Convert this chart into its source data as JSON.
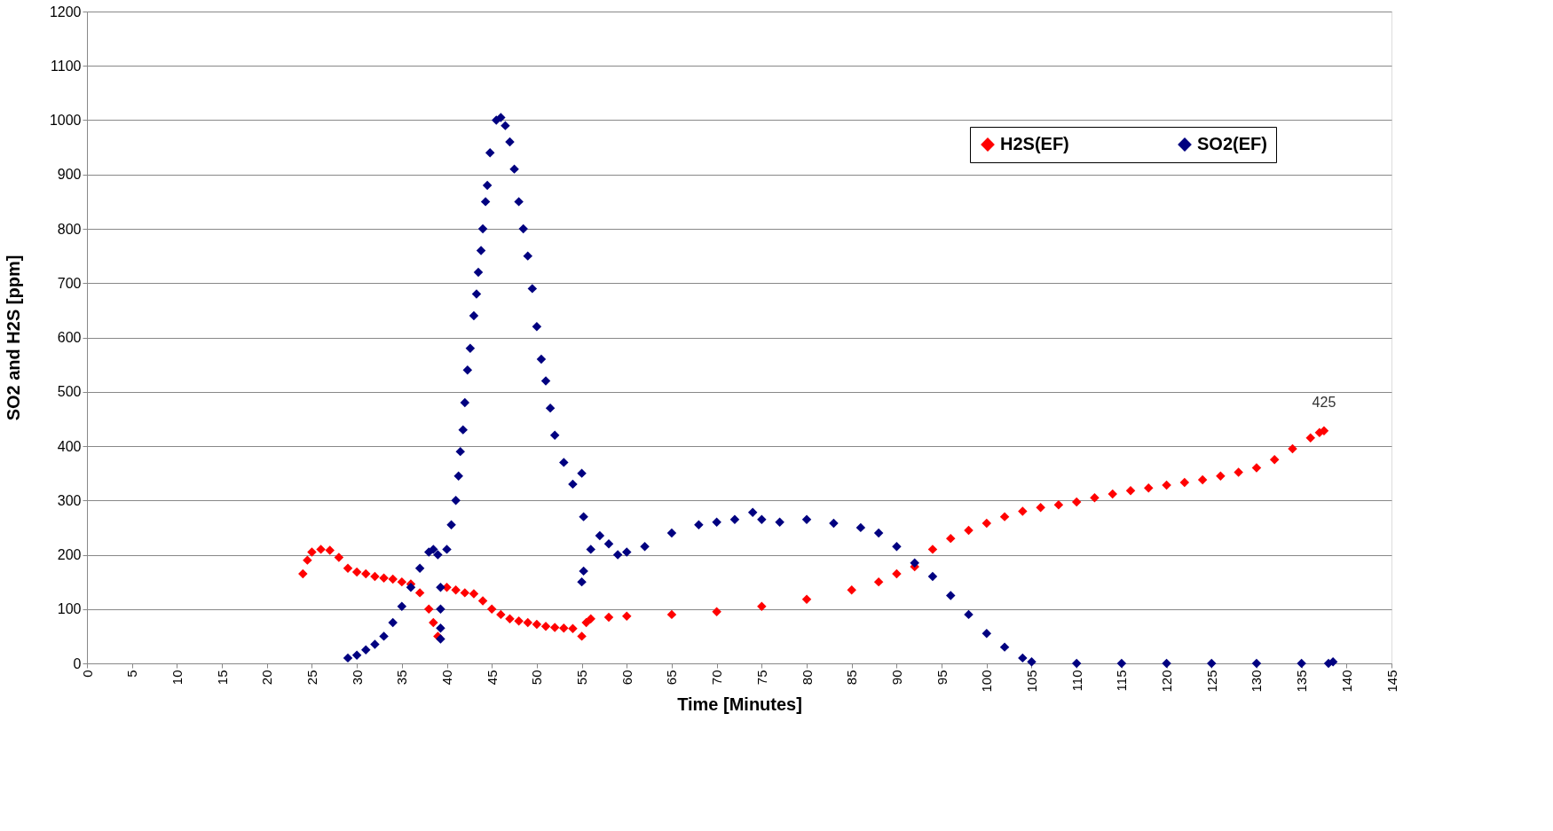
{
  "chart_data": {
    "type": "scatter",
    "xlabel": "Time [Minutes]",
    "ylabel": "SO2  and  H2S  [ppm]",
    "xlim": [
      0,
      145
    ],
    "xticks": [
      0,
      5,
      10,
      15,
      20,
      25,
      30,
      35,
      40,
      45,
      50,
      55,
      60,
      65,
      70,
      75,
      80,
      85,
      90,
      95,
      100,
      105,
      110,
      115,
      120,
      125,
      130,
      135,
      140,
      145
    ],
    "ylim": [
      0,
      1200
    ],
    "yticks": [
      0,
      100,
      200,
      300,
      400,
      500,
      600,
      700,
      800,
      900,
      1000,
      1100,
      1200
    ],
    "grid": "y",
    "legend": "top right",
    "marker": "diamond",
    "annotations": [
      {
        "text": "425",
        "x": 137.5,
        "y": 428
      }
    ],
    "series": [
      {
        "name": "H2S(EF)",
        "color": "#ff0000",
        "x": [
          24,
          24.5,
          25,
          26,
          27,
          28,
          29,
          30,
          31,
          32,
          33,
          34,
          35,
          36,
          37,
          38,
          38.5,
          39,
          40,
          41,
          42,
          43,
          44,
          45,
          46,
          47,
          48,
          49,
          50,
          51,
          52,
          53,
          54,
          55,
          55.5,
          56,
          58,
          60,
          65,
          70,
          75,
          80,
          85,
          88,
          90,
          92,
          94,
          96,
          98,
          100,
          102,
          104,
          106,
          108,
          110,
          112,
          114,
          116,
          118,
          120,
          122,
          124,
          126,
          128,
          130,
          132,
          134,
          136,
          137,
          137.5
        ],
        "values": [
          165,
          190,
          205,
          210,
          208,
          195,
          175,
          168,
          165,
          160,
          157,
          155,
          150,
          146,
          130,
          100,
          75,
          50,
          140,
          135,
          130,
          128,
          115,
          100,
          90,
          82,
          78,
          75,
          72,
          68,
          66,
          65,
          64,
          50,
          75,
          82,
          85,
          87,
          90,
          95,
          105,
          118,
          135,
          150,
          165,
          178,
          210,
          230,
          245,
          258,
          270,
          280,
          287,
          292,
          297,
          305,
          312,
          318,
          323,
          328,
          333,
          338,
          345,
          352,
          360,
          375,
          395,
          415,
          425,
          428
        ]
      },
      {
        "name": "SO2(EF)",
        "color": "#000080",
        "x": [
          29,
          30,
          31,
          32,
          33,
          34,
          35,
          36,
          37,
          38,
          38.5,
          39,
          39.3,
          39.3,
          39.3,
          39.3,
          40,
          40.5,
          41,
          41.3,
          41.5,
          41.8,
          42,
          42.3,
          42.6,
          43,
          43.3,
          43.5,
          43.8,
          44,
          44.3,
          44.5,
          44.8,
          45.5,
          46,
          46.5,
          47,
          47.5,
          48,
          48.5,
          49,
          49.5,
          50,
          50.5,
          51,
          51.5,
          52,
          53,
          54,
          55,
          55.2,
          55.2,
          55,
          56,
          57,
          58,
          59,
          60,
          62,
          65,
          68,
          70,
          72,
          74,
          75,
          77,
          80,
          83,
          86,
          88,
          90,
          92,
          94,
          96,
          98,
          100,
          102,
          104,
          105,
          110,
          115,
          120,
          125,
          130,
          135,
          138,
          138.5
        ],
        "values": [
          10,
          15,
          25,
          35,
          50,
          75,
          105,
          140,
          175,
          205,
          210,
          200,
          140,
          100,
          65,
          45,
          210,
          255,
          300,
          345,
          390,
          430,
          480,
          540,
          580,
          640,
          680,
          720,
          760,
          800,
          850,
          880,
          940,
          1000,
          1005,
          990,
          960,
          910,
          850,
          800,
          750,
          690,
          620,
          560,
          520,
          470,
          420,
          370,
          330,
          350,
          270,
          170,
          150,
          210,
          235,
          220,
          200,
          205,
          215,
          240,
          255,
          260,
          265,
          278,
          265,
          260,
          265,
          258,
          250,
          240,
          215,
          185,
          160,
          125,
          90,
          55,
          30,
          10,
          3,
          0,
          0,
          0,
          0,
          0,
          0,
          0,
          3
        ]
      }
    ]
  }
}
